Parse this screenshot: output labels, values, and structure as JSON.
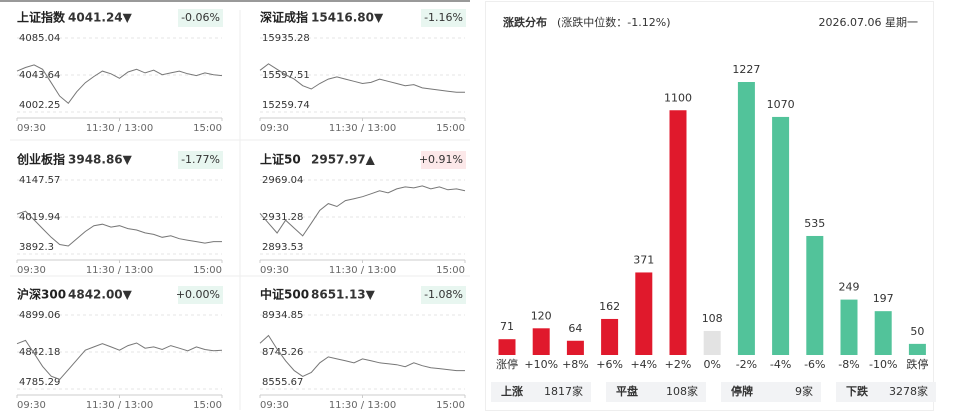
{
  "chart_data": [
    {
      "type": "line",
      "title": "上证指数",
      "price": "4041.24▼",
      "change": "-0.06%",
      "color": "#1aa36f",
      "line_color": "#777",
      "x": [
        0,
        10,
        20,
        30,
        40,
        50,
        60,
        70,
        80,
        90,
        100,
        110,
        120,
        130,
        140,
        150,
        160,
        170,
        180,
        190,
        200,
        210,
        220,
        230,
        240
      ],
      "values": [
        4048,
        4052,
        4055,
        4050,
        4035,
        4020,
        4012,
        4025,
        4035,
        4042,
        4048,
        4045,
        4040,
        4047,
        4050,
        4046,
        4049,
        4044,
        4046,
        4048,
        4045,
        4043,
        4046,
        4044,
        4043
      ],
      "ylim": [
        4002.25,
        4085.04
      ],
      "yticks": [
        4002.25,
        4043.64,
        4085.04
      ],
      "xlim": [
        0,
        240
      ],
      "xticks": [
        {
          "value": 0,
          "label": "09:30"
        },
        {
          "value": 120,
          "label": "11:30 / 13:00"
        },
        {
          "value": 240,
          "label": "15:00"
        }
      ]
    },
    {
      "type": "line",
      "title": "深证成指",
      "price": "15416.80▼",
      "change": "-1.16%",
      "color": "#1aa36f",
      "line_color": "#777",
      "x": [
        0,
        10,
        20,
        30,
        40,
        50,
        60,
        70,
        80,
        90,
        100,
        110,
        120,
        130,
        140,
        150,
        160,
        170,
        180,
        190,
        200,
        210,
        220,
        230,
        240
      ],
      "values": [
        15640,
        15700,
        15650,
        15600,
        15560,
        15500,
        15470,
        15520,
        15560,
        15580,
        15560,
        15540,
        15520,
        15530,
        15560,
        15540,
        15520,
        15500,
        15510,
        15480,
        15470,
        15460,
        15450,
        15440,
        15440
      ],
      "ylim": [
        15259.74,
        15935.28
      ],
      "yticks": [
        15259.74,
        15597.51,
        15935.28
      ],
      "xlim": [
        0,
        240
      ],
      "xticks": [
        {
          "value": 0,
          "label": "09:30"
        },
        {
          "value": 120,
          "label": "11:30 / 13:00"
        },
        {
          "value": 240,
          "label": "15:00"
        }
      ]
    },
    {
      "type": "line",
      "title": "创业板指",
      "price": "3948.86▼",
      "change": "-1.77%",
      "color": "#1aa36f",
      "line_color": "#777",
      "x": [
        0,
        10,
        20,
        30,
        40,
        50,
        60,
        70,
        80,
        90,
        100,
        110,
        120,
        130,
        140,
        150,
        160,
        170,
        180,
        190,
        200,
        210,
        220,
        230,
        240
      ],
      "values": [
        4030,
        4040,
        4010,
        3980,
        3950,
        3925,
        3920,
        3945,
        3970,
        3990,
        3995,
        3985,
        3990,
        3980,
        3975,
        3965,
        3960,
        3950,
        3955,
        3945,
        3940,
        3935,
        3930,
        3935,
        3935
      ],
      "ylim": [
        3892.3,
        4147.57
      ],
      "yticks": [
        3892.3,
        4019.94,
        4147.57
      ],
      "xlim": [
        0,
        240
      ],
      "xticks": [
        {
          "value": 0,
          "label": "09:30"
        },
        {
          "value": 120,
          "label": "11:30 / 13:00"
        },
        {
          "value": 240,
          "label": "15:00"
        }
      ]
    },
    {
      "type": "line",
      "title": "上证50",
      "price": "2957.97▲",
      "change": "+0.91%",
      "color": "#e0192c",
      "line_color": "#777",
      "x": [
        0,
        10,
        20,
        30,
        40,
        50,
        60,
        70,
        80,
        90,
        100,
        110,
        120,
        130,
        140,
        150,
        160,
        170,
        180,
        190,
        200,
        210,
        220,
        230,
        240
      ],
      "values": [
        2935,
        2925,
        2915,
        2928,
        2920,
        2912,
        2925,
        2938,
        2945,
        2942,
        2948,
        2950,
        2952,
        2955,
        2958,
        2956,
        2960,
        2962,
        2961,
        2963,
        2960,
        2962,
        2959,
        2960,
        2958
      ],
      "ylim": [
        2893.53,
        2969.04
      ],
      "yticks": [
        2893.53,
        2931.28,
        2969.04
      ],
      "xlim": [
        0,
        240
      ],
      "xticks": [
        {
          "value": 0,
          "label": "09:30"
        },
        {
          "value": 120,
          "label": "11:30 / 13:00"
        },
        {
          "value": 240,
          "label": "15:00"
        }
      ]
    },
    {
      "type": "line",
      "title": "沪深300",
      "price": "4842.00▼",
      "change": "+0.00%",
      "color": "#1aa36f",
      "line_color": "#777",
      "x": [
        0,
        10,
        20,
        30,
        40,
        50,
        60,
        70,
        80,
        90,
        100,
        110,
        120,
        130,
        140,
        150,
        160,
        170,
        180,
        190,
        200,
        210,
        220,
        230,
        240
      ],
      "values": [
        4855,
        4860,
        4840,
        4820,
        4805,
        4800,
        4815,
        4830,
        4845,
        4850,
        4855,
        4850,
        4845,
        4852,
        4856,
        4848,
        4850,
        4846,
        4852,
        4848,
        4844,
        4850,
        4846,
        4844,
        4845
      ],
      "ylim": [
        4785.29,
        4899.06
      ],
      "yticks": [
        4785.29,
        4842.18,
        4899.06
      ],
      "xlim": [
        0,
        240
      ],
      "xticks": [
        {
          "value": 0,
          "label": "09:30"
        },
        {
          "value": 120,
          "label": "11:30 / 13:00"
        },
        {
          "value": 240,
          "label": "15:00"
        }
      ]
    },
    {
      "type": "line",
      "title": "中证500",
      "price": "8651.13▼",
      "change": "-1.08%",
      "color": "#1aa36f",
      "line_color": "#777",
      "x": [
        0,
        10,
        20,
        30,
        40,
        50,
        60,
        70,
        80,
        90,
        100,
        110,
        120,
        130,
        140,
        150,
        160,
        170,
        180,
        190,
        200,
        210,
        220,
        230,
        240
      ],
      "values": [
        8790,
        8830,
        8760,
        8700,
        8650,
        8620,
        8640,
        8690,
        8720,
        8710,
        8700,
        8690,
        8710,
        8700,
        8690,
        8685,
        8680,
        8670,
        8690,
        8675,
        8665,
        8660,
        8655,
        8650,
        8650
      ],
      "ylim": [
        8555.67,
        8934.85
      ],
      "yticks": [
        8555.67,
        8745.26,
        8934.85
      ],
      "xlim": [
        0,
        240
      ],
      "xticks": [
        {
          "value": 0,
          "label": "09:30"
        },
        {
          "value": 120,
          "label": "11:30 / 13:00"
        },
        {
          "value": 240,
          "label": "15:00"
        }
      ]
    },
    {
      "type": "bar",
      "title": "涨跌分布",
      "subtitle": "(涨跌中位数：-1.12%)",
      "date": "2026.07.06 星期一",
      "categories": [
        "涨停",
        "+10%",
        "+8%",
        "+6%",
        "+4%",
        "+2%",
        "0%",
        "-2%",
        "-4%",
        "-6%",
        "-8%",
        "-10%",
        "跌停"
      ],
      "values": [
        71,
        120,
        64,
        162,
        371,
        1100,
        108,
        1227,
        1070,
        535,
        249,
        197,
        50
      ],
      "colors": [
        "#e0192c",
        "#e0192c",
        "#e0192c",
        "#e0192c",
        "#e0192c",
        "#e0192c",
        "#e3e3e3",
        "#52c39a",
        "#52c39a",
        "#52c39a",
        "#52c39a",
        "#52c39a",
        "#52c39a"
      ]
    }
  ],
  "summary": [
    {
      "label": "上涨",
      "value": "1817家",
      "color": "#e0192c"
    },
    {
      "label": "平盘",
      "value": "108家",
      "color": "#555"
    },
    {
      "label": "停牌",
      "value": "9家",
      "color": "#555"
    },
    {
      "label": "下跌",
      "value": "3278家",
      "color": "#1aa36f"
    }
  ]
}
